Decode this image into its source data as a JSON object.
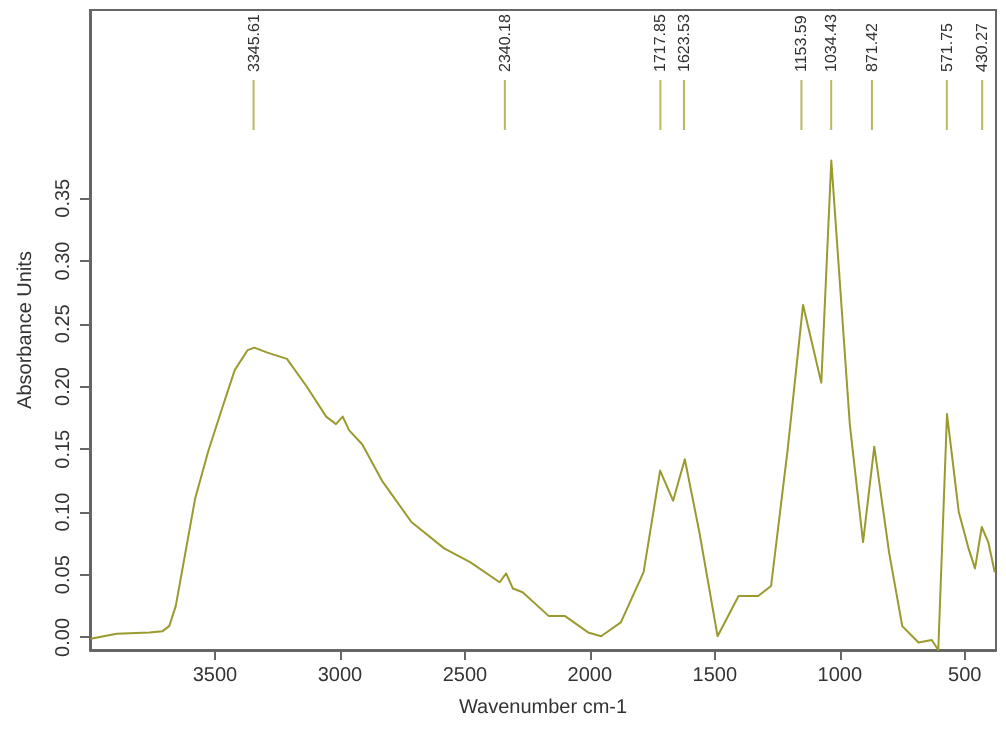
{
  "chart_data": {
    "type": "line",
    "xlabel": "Wavenumber cm-1",
    "ylabel": "Absorbance Units",
    "xlim": [
      4000,
      375
    ],
    "xticks": [
      3500,
      3000,
      2500,
      2000,
      1500,
      1000,
      500
    ],
    "ylim": [
      -0.01,
      0.5
    ],
    "yticks": [
      {
        "value": 0,
        "label": "0.00"
      },
      {
        "value": 0.05,
        "label": "0.05"
      },
      {
        "value": 0.1,
        "label": "0.10"
      },
      {
        "value": 0.15,
        "label": "0.15"
      },
      {
        "value": 0.2,
        "label": "0.20"
      },
      {
        "value": 0.25,
        "label": "0.25"
      },
      {
        "value": 0.3,
        "label": "0.30"
      },
      {
        "value": 0.35,
        "label": "0.35"
      }
    ],
    "grid": false,
    "marker": "none",
    "line_style": "solid",
    "series": [
      {
        "color": "#9a9a2e",
        "x": [
          3997,
          3893,
          3762,
          3710,
          3683,
          3657,
          3618,
          3579,
          3526,
          3474,
          3421,
          3369,
          3343,
          3290,
          3212,
          3133,
          3055,
          3016,
          2989,
          2963,
          2911,
          2832,
          2714,
          2583,
          2479,
          2361,
          2335,
          2308,
          2269,
          2164,
          2099,
          2007,
          1955,
          1876,
          1785,
          1719,
          1667,
          1620,
          1562,
          1489,
          1405,
          1327,
          1275,
          1209,
          1147,
          1074,
          1034,
          960,
          907,
          862,
          803,
          750,
          685,
          632,
          606,
          571,
          524,
          485,
          459,
          432,
          406,
          380
        ],
        "values": [
          -0.001,
          0.003,
          0.004,
          0.005,
          0.009,
          0.025,
          0.068,
          0.111,
          0.149,
          0.181,
          0.213,
          0.229,
          0.231,
          0.227,
          0.222,
          0.2,
          0.176,
          0.17,
          0.176,
          0.165,
          0.154,
          0.125,
          0.092,
          0.071,
          0.06,
          0.044,
          0.051,
          0.039,
          0.036,
          0.017,
          0.017,
          0.004,
          0.001,
          0.012,
          0.052,
          0.133,
          0.109,
          0.142,
          0.084,
          0.001,
          0.033,
          0.033,
          0.041,
          0.149,
          0.265,
          0.203,
          0.38,
          0.17,
          0.076,
          0.152,
          0.068,
          0.009,
          -0.004,
          -0.002,
          -0.01,
          0.178,
          0.1,
          0.071,
          0.055,
          0.088,
          0.076,
          0.052
        ]
      }
    ],
    "ref_lines": [
      {
        "axis": "x",
        "value": 3345.61,
        "label": "3345.61",
        "color": "#b8b860"
      },
      {
        "axis": "x",
        "value": 2340.18,
        "label": "2340.18",
        "color": "#b8b860"
      },
      {
        "axis": "x",
        "value": 1717.85,
        "label": "1717.85",
        "color": "#b8b860"
      },
      {
        "axis": "x",
        "value": 1623.53,
        "label": "1623.53",
        "color": "#b8b860"
      },
      {
        "axis": "x",
        "value": 1153.59,
        "label": "1153.59",
        "color": "#b8b860"
      },
      {
        "axis": "x",
        "value": 1034.43,
        "label": "1034.43",
        "color": "#b8b860"
      },
      {
        "axis": "x",
        "value": 871.42,
        "label": "871.42",
        "color": "#b8b860"
      },
      {
        "axis": "x",
        "value": 571.75,
        "label": "571.75",
        "color": "#b8b860"
      },
      {
        "axis": "x",
        "value": 430.27,
        "label": "430.27",
        "color": "#b8b860"
      }
    ]
  }
}
